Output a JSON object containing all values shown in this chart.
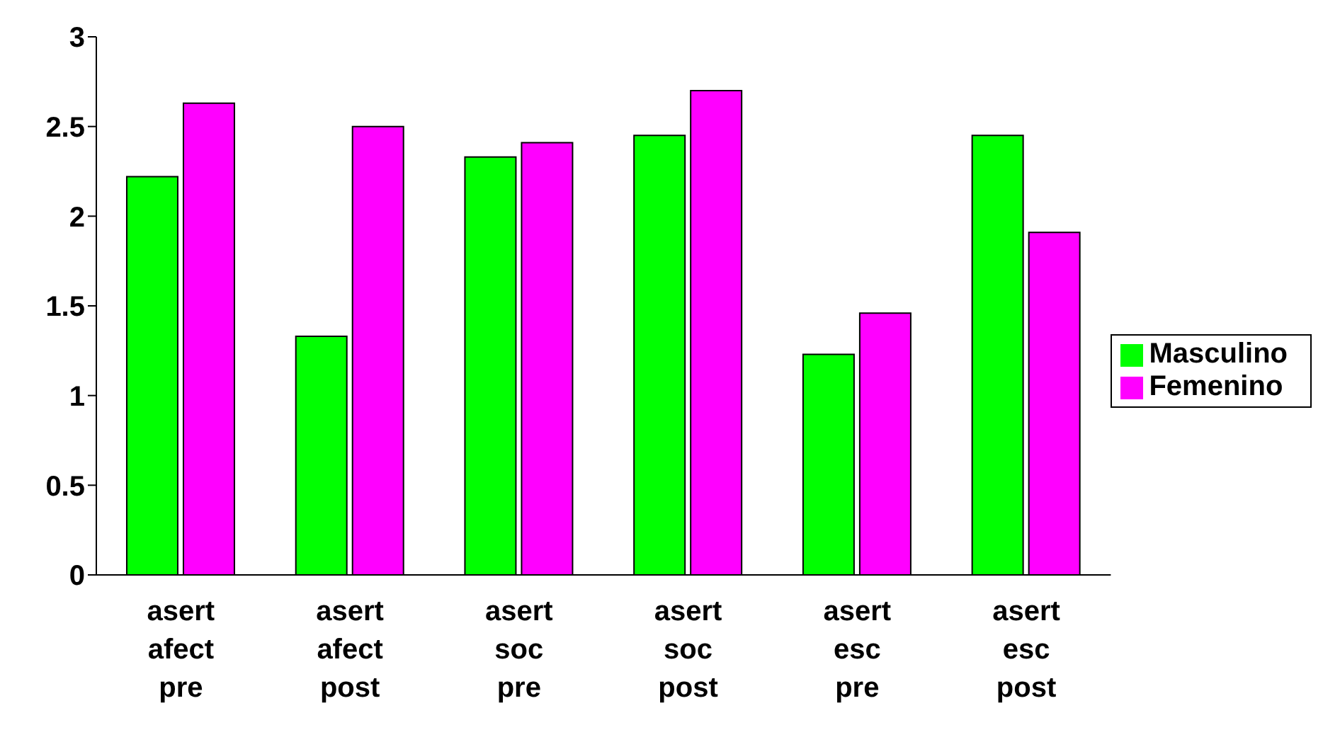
{
  "chart_data": {
    "type": "bar",
    "categories": [
      "asert afect pre",
      "asert afect post",
      "asert soc pre",
      "asert soc post",
      "asert esc pre",
      "asert esc post"
    ],
    "series": [
      {
        "name": "Masculino",
        "color": "#00ff00",
        "values": [
          2.22,
          1.33,
          2.33,
          2.45,
          1.23,
          2.45
        ]
      },
      {
        "name": "Femenino",
        "color": "#ff00ff",
        "values": [
          2.63,
          2.5,
          2.41,
          2.7,
          1.46,
          1.91
        ]
      }
    ],
    "ylim": [
      0,
      3
    ],
    "yticks": [
      0,
      0.5,
      1,
      1.5,
      2,
      2.5,
      3
    ],
    "legend": "right"
  }
}
